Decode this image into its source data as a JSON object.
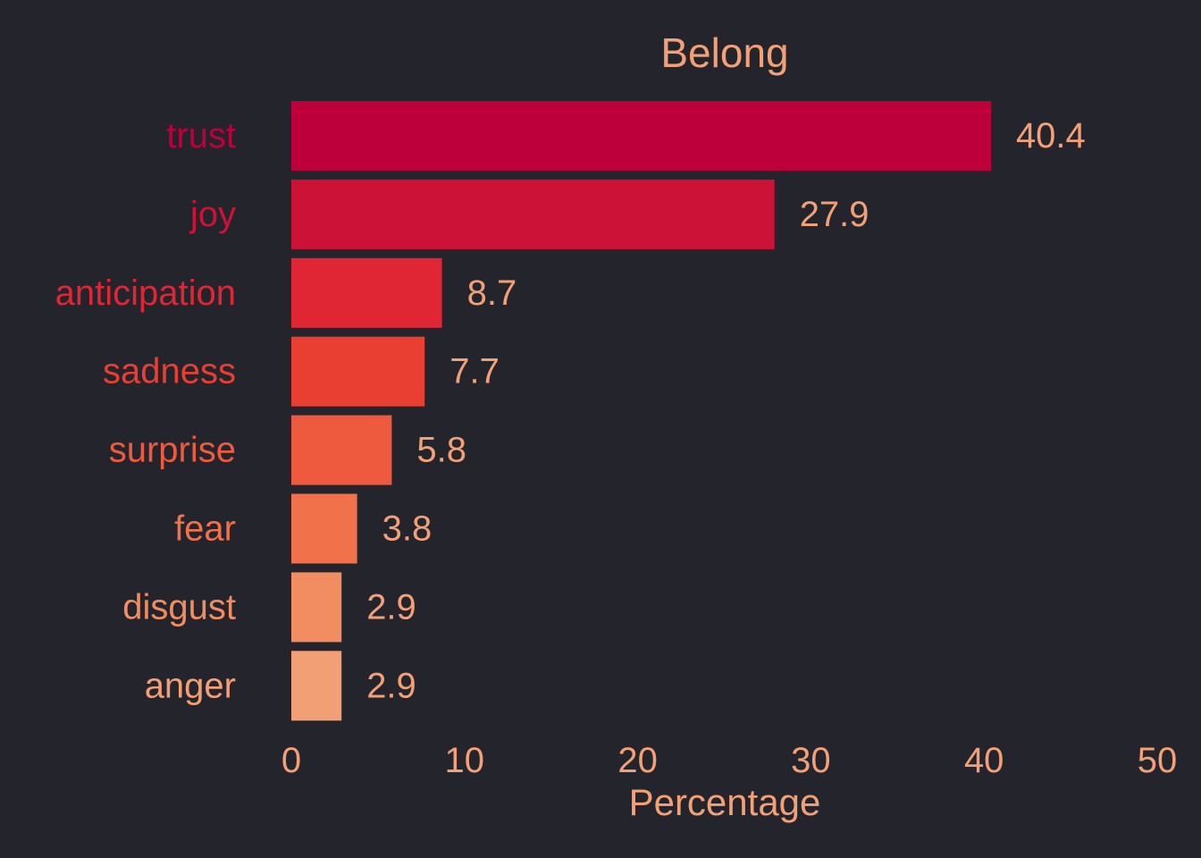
{
  "chart_data": {
    "type": "bar",
    "orientation": "horizontal",
    "title": "Belong",
    "xlabel": "Percentage",
    "ylabel": "",
    "xlim": [
      0,
      50
    ],
    "x_ticks": [
      0,
      10,
      20,
      30,
      40,
      50
    ],
    "grid": false,
    "categories": [
      "trust",
      "joy",
      "anticipation",
      "sadness",
      "surprise",
      "fear",
      "disgust",
      "anger"
    ],
    "values": [
      40.4,
      27.9,
      8.7,
      7.7,
      5.8,
      3.8,
      2.9,
      2.9
    ],
    "value_labels": [
      "40.4",
      "27.9",
      "8.7",
      "7.7",
      "5.8",
      "3.8",
      "2.9",
      "2.9"
    ],
    "bar_colors": [
      "#bd003c",
      "#cd1237",
      "#e02634",
      "#e83f32",
      "#ee5a3e",
      "#f0714a",
      "#f28d62",
      "#f39f75"
    ]
  },
  "colors": {
    "background": "#24242d",
    "text": "#f3a077"
  }
}
